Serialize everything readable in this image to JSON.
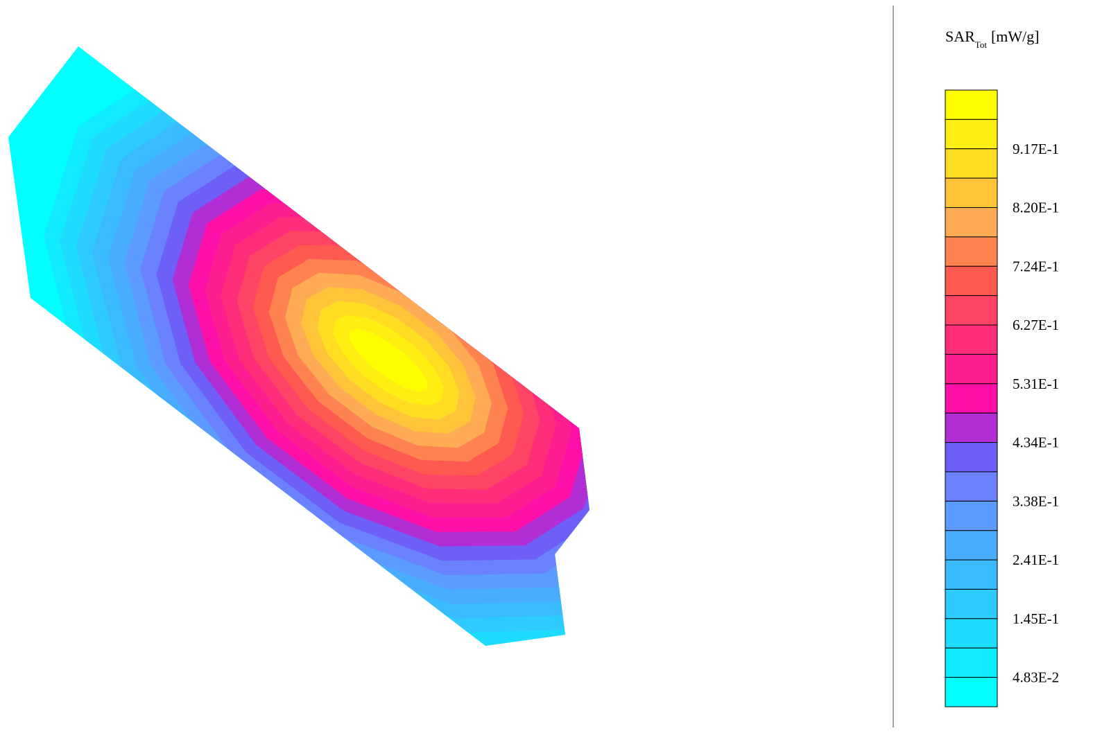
{
  "chart_data": {
    "type": "heatmap",
    "legend": {
      "title_main": "SAR",
      "title_sub": "Tot",
      "unit": "[mW/g]",
      "tick_labels": [
        "9.17E-1",
        "8.20E-1",
        "7.24E-1",
        "6.27E-1",
        "5.31E-1",
        "4.34E-1",
        "3.38E-1",
        "2.41E-1",
        "1.45E-1",
        "4.83E-2"
      ],
      "colors_top_to_bottom": [
        "#ffff00",
        "#ffee11",
        "#ffdd22",
        "#ffc43a",
        "#ffaa55",
        "#ff8350",
        "#ff5a50",
        "#ff4465",
        "#ff2d7a",
        "#ff1e8f",
        "#ff10a8",
        "#b02ed4",
        "#6e5ff8",
        "#6a82ff",
        "#5c9bff",
        "#49adff",
        "#3abaff",
        "#2dcbff",
        "#1edcff",
        "#10ebff",
        "#00ffff"
      ]
    },
    "distribution": {
      "peak_level_index": 0,
      "background_level_index": 20,
      "orientation": "elongated hotspot along diagonal from upper-left to lower-right"
    }
  }
}
